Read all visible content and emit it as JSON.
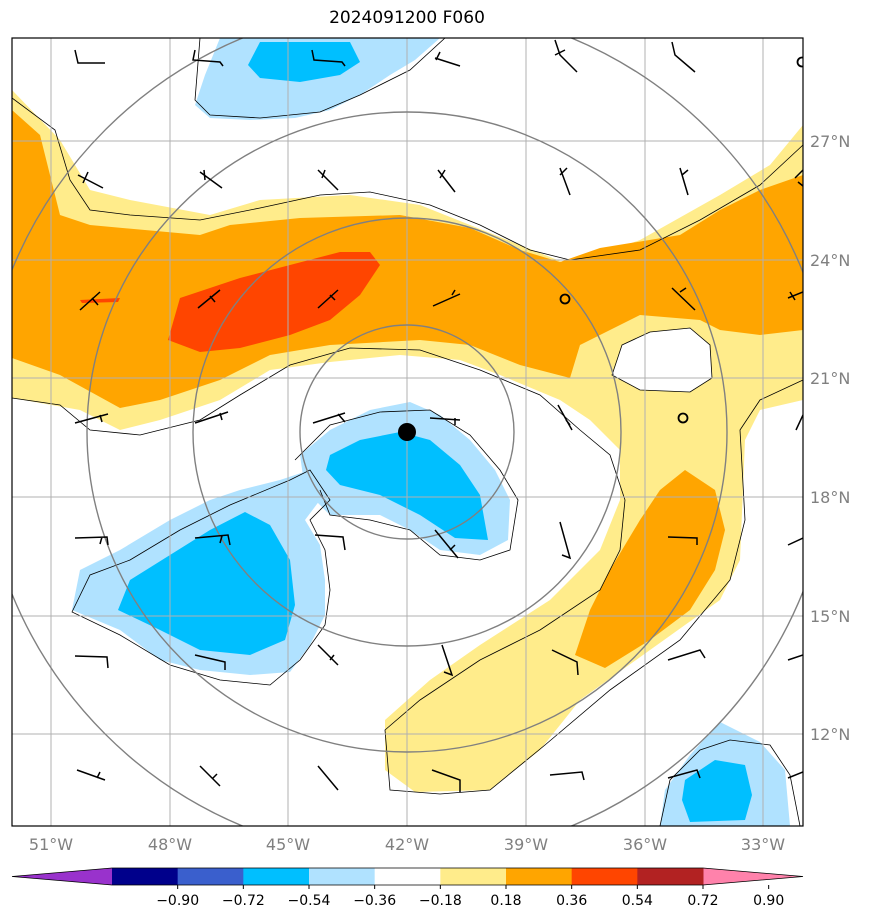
{
  "title": "2024091200 F060",
  "map": {
    "lon_ticks": [
      "51°W",
      "48°W",
      "45°W",
      "42°W",
      "39°W",
      "36°W",
      "33°W"
    ],
    "lat_ticks": [
      "27°N",
      "24°N",
      "21°N",
      "18°N",
      "15°N",
      "12°N"
    ],
    "lon_range": [
      -52,
      -32
    ],
    "lat_range": [
      9.8,
      29.8
    ],
    "center_marker": {
      "lon": -42.0,
      "lat": 19.6
    },
    "projection": "PlateCarree",
    "gridlines": true
  },
  "colorbar": {
    "tick_labels": [
      "−0.90",
      "−0.72",
      "−0.54",
      "−0.36",
      "−0.18",
      "0.18",
      "0.36",
      "0.54",
      "0.72",
      "0.90"
    ],
    "colors": [
      "#9932cc",
      "#00008b",
      "#3a5fcd",
      "#00bfff",
      "#b0e2ff",
      "#ffffff",
      "#ffec8b",
      "#ffa500",
      "#ff4500",
      "#b22222",
      "#ff82ab"
    ],
    "extend": "both"
  },
  "field_colors": {
    "light_blue": "#b0e2ff",
    "blue": "#00bfff",
    "light_yellow": "#ffec8b",
    "orange": "#ffa500",
    "red": "#ff4500"
  }
}
